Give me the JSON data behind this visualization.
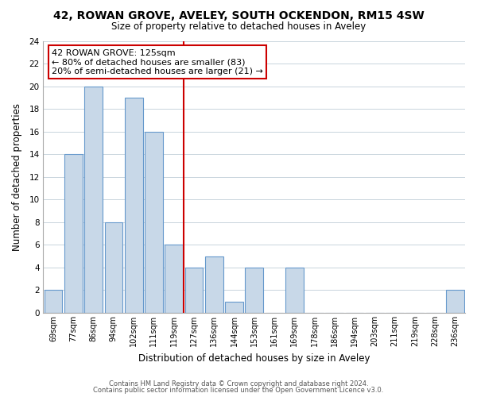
{
  "title": "42, ROWAN GROVE, AVELEY, SOUTH OCKENDON, RM15 4SW",
  "subtitle": "Size of property relative to detached houses in Aveley",
  "xlabel": "Distribution of detached houses by size in Aveley",
  "ylabel": "Number of detached properties",
  "categories": [
    "69sqm",
    "77sqm",
    "86sqm",
    "94sqm",
    "102sqm",
    "111sqm",
    "119sqm",
    "127sqm",
    "136sqm",
    "144sqm",
    "153sqm",
    "161sqm",
    "169sqm",
    "178sqm",
    "186sqm",
    "194sqm",
    "203sqm",
    "211sqm",
    "219sqm",
    "228sqm",
    "236sqm"
  ],
  "values": [
    2,
    14,
    20,
    8,
    19,
    16,
    6,
    4,
    5,
    1,
    4,
    0,
    4,
    0,
    0,
    0,
    0,
    0,
    0,
    0,
    2
  ],
  "bar_color": "#c8d8e8",
  "bar_edge_color": "#6699cc",
  "highlight_line_color": "#cc0000",
  "ylim": [
    0,
    24
  ],
  "yticks": [
    0,
    2,
    4,
    6,
    8,
    10,
    12,
    14,
    16,
    18,
    20,
    22,
    24
  ],
  "annotation_title": "42 ROWAN GROVE: 125sqm",
  "annotation_line1": "← 80% of detached houses are smaller (83)",
  "annotation_line2": "20% of semi-detached houses are larger (21) →",
  "annotation_box_color": "#ffffff",
  "annotation_box_edge": "#cc0000",
  "footer_line1": "Contains HM Land Registry data © Crown copyright and database right 2024.",
  "footer_line2": "Contains public sector information licensed under the Open Government Licence v3.0.",
  "background_color": "#ffffff",
  "grid_color": "#c8d4dc"
}
